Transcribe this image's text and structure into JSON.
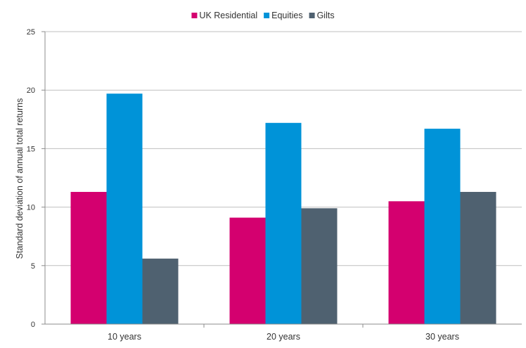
{
  "chart_data": {
    "type": "bar",
    "categories": [
      "10 years",
      "20 years",
      "30 years"
    ],
    "series": [
      {
        "name": "UK Residential",
        "color": "#d4006f",
        "values": [
          11.3,
          9.1,
          10.5
        ]
      },
      {
        "name": "Equities",
        "color": "#0093d8",
        "values": [
          19.7,
          17.2,
          16.7
        ]
      },
      {
        "name": "Gilts",
        "color": "#4f6170",
        "values": [
          5.6,
          9.9,
          11.3
        ]
      }
    ],
    "title": "",
    "xlabel": "",
    "ylabel": "Standard deviation of annual total returns",
    "ylim": [
      0,
      25
    ],
    "yticks": [
      0,
      5,
      10,
      15,
      20,
      25
    ],
    "grid": true,
    "legend_position": "top-center"
  }
}
